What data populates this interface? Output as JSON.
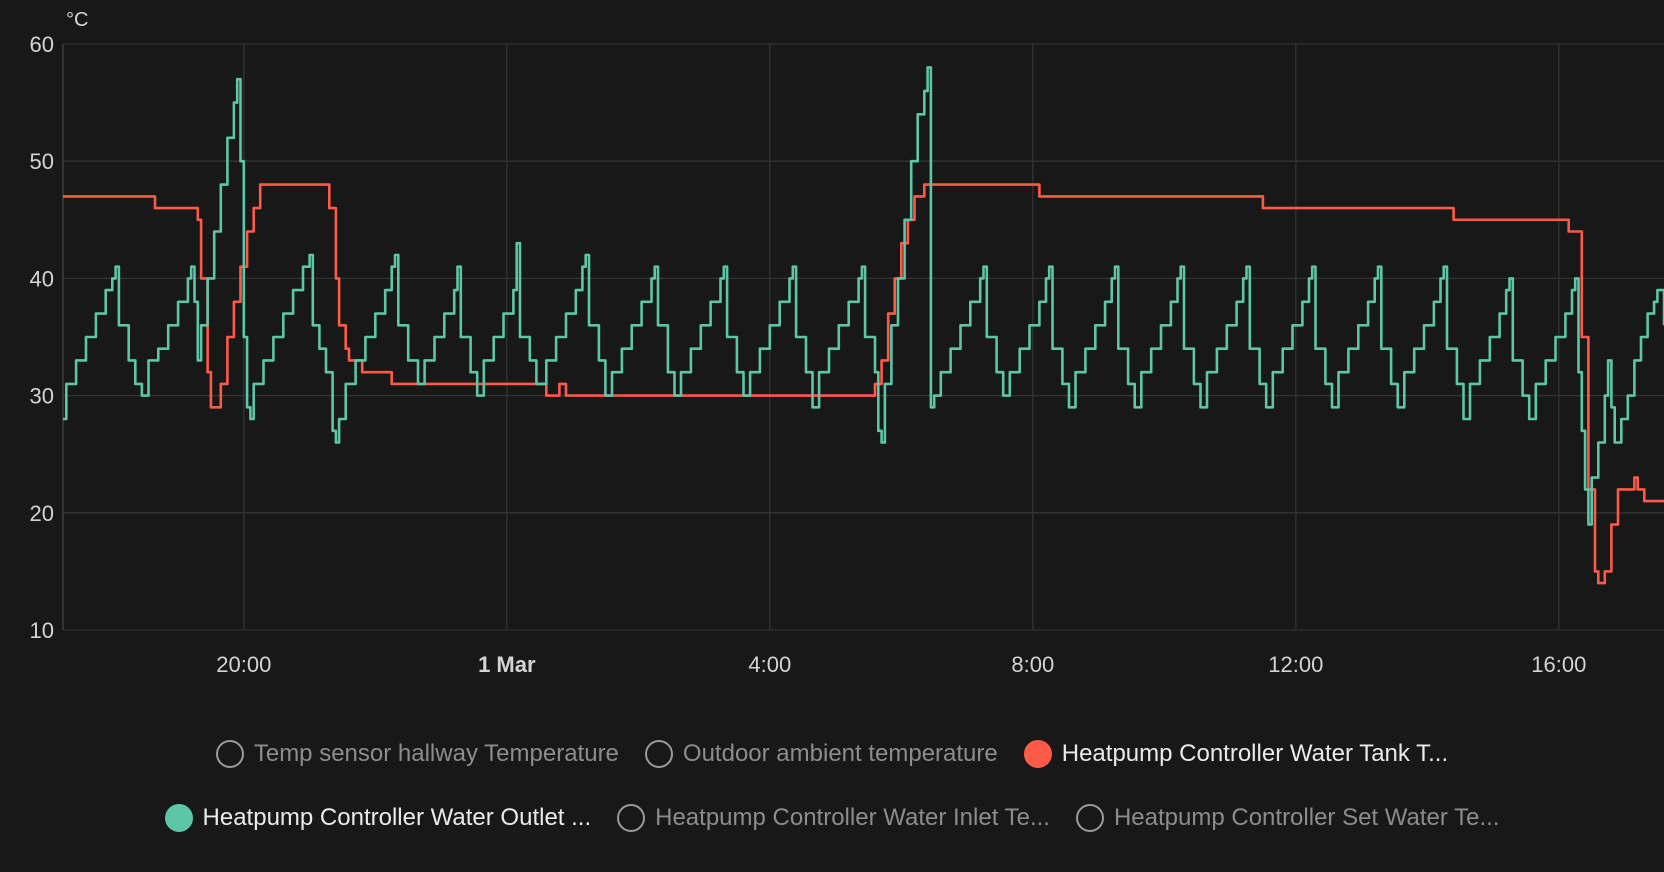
{
  "chart_data": {
    "type": "line",
    "title": "",
    "unit_label": "°C",
    "ylim": [
      10,
      60
    ],
    "y_ticks": [
      10,
      20,
      30,
      40,
      50,
      60
    ],
    "x_range_hours": [
      17.25,
      41.6
    ],
    "x_ticks": [
      {
        "hour": 20,
        "label": "20:00",
        "bold": false
      },
      {
        "hour": 24,
        "label": "1 Mar",
        "bold": true
      },
      {
        "hour": 28,
        "label": "4:00",
        "bold": false
      },
      {
        "hour": 32,
        "label": "8:00",
        "bold": false
      },
      {
        "hour": 36,
        "label": "12:00",
        "bold": false
      },
      {
        "hour": 40,
        "label": "16:00",
        "bold": false
      }
    ],
    "grid": true,
    "legend_position": "bottom",
    "series": [
      {
        "name": "Heatpump Controller Water Tank T...",
        "color": "#ff5a47",
        "step": true,
        "points": [
          [
            17.25,
            47
          ],
          [
            18.65,
            46
          ],
          [
            19.3,
            45
          ],
          [
            19.35,
            40
          ],
          [
            19.45,
            32
          ],
          [
            19.5,
            29
          ],
          [
            19.6,
            29
          ],
          [
            19.65,
            31
          ],
          [
            19.75,
            35
          ],
          [
            19.85,
            38
          ],
          [
            19.95,
            41
          ],
          [
            20.05,
            44
          ],
          [
            20.15,
            46
          ],
          [
            20.25,
            48
          ],
          [
            21.25,
            48
          ],
          [
            21.3,
            46
          ],
          [
            21.4,
            40
          ],
          [
            21.45,
            36
          ],
          [
            21.55,
            34
          ],
          [
            21.6,
            33
          ],
          [
            21.75,
            33
          ],
          [
            21.8,
            32
          ],
          [
            22.2,
            32
          ],
          [
            22.25,
            31
          ],
          [
            24.6,
            31
          ],
          [
            24.6,
            30
          ],
          [
            24.8,
            30
          ],
          [
            24.8,
            31
          ],
          [
            24.9,
            31
          ],
          [
            24.9,
            30
          ],
          [
            29.55,
            30
          ],
          [
            29.6,
            31
          ],
          [
            29.7,
            33
          ],
          [
            29.8,
            37
          ],
          [
            29.9,
            40
          ],
          [
            30.0,
            43
          ],
          [
            30.1,
            45
          ],
          [
            30.2,
            47
          ],
          [
            30.35,
            48
          ],
          [
            32.05,
            48
          ],
          [
            32.1,
            47
          ],
          [
            35.45,
            47
          ],
          [
            35.5,
            46
          ],
          [
            38.35,
            46
          ],
          [
            38.4,
            45
          ],
          [
            40.1,
            45
          ],
          [
            40.15,
            44
          ],
          [
            40.25,
            44
          ],
          [
            40.35,
            35
          ],
          [
            40.45,
            22
          ],
          [
            40.55,
            15
          ],
          [
            40.6,
            14
          ],
          [
            40.7,
            15
          ],
          [
            40.8,
            19
          ],
          [
            40.9,
            22
          ],
          [
            41.1,
            22
          ],
          [
            41.15,
            23
          ],
          [
            41.2,
            22
          ],
          [
            41.3,
            21
          ],
          [
            41.6,
            21
          ]
        ]
      },
      {
        "name": "Heatpump Controller Water Outlet ...",
        "color": "#5cc6a6",
        "step": true,
        "points": [
          [
            17.25,
            28
          ],
          [
            17.3,
            31
          ],
          [
            17.45,
            33
          ],
          [
            17.6,
            35
          ],
          [
            17.75,
            37
          ],
          [
            17.9,
            39
          ],
          [
            18.0,
            40
          ],
          [
            18.05,
            41
          ],
          [
            18.1,
            36
          ],
          [
            18.25,
            33
          ],
          [
            18.35,
            31
          ],
          [
            18.45,
            30
          ],
          [
            18.55,
            33
          ],
          [
            18.7,
            34
          ],
          [
            18.85,
            36
          ],
          [
            19.0,
            38
          ],
          [
            19.15,
            40
          ],
          [
            19.2,
            41
          ],
          [
            19.25,
            38
          ],
          [
            19.3,
            33
          ],
          [
            19.35,
            36
          ],
          [
            19.45,
            40
          ],
          [
            19.55,
            44
          ],
          [
            19.65,
            48
          ],
          [
            19.75,
            52
          ],
          [
            19.85,
            55
          ],
          [
            19.9,
            57
          ],
          [
            19.95,
            50
          ],
          [
            20.0,
            35
          ],
          [
            20.05,
            29
          ],
          [
            20.1,
            28
          ],
          [
            20.15,
            31
          ],
          [
            20.3,
            33
          ],
          [
            20.45,
            35
          ],
          [
            20.6,
            37
          ],
          [
            20.75,
            39
          ],
          [
            20.9,
            41
          ],
          [
            21.0,
            42
          ],
          [
            21.05,
            36
          ],
          [
            21.15,
            34
          ],
          [
            21.25,
            32
          ],
          [
            21.35,
            27
          ],
          [
            21.4,
            26
          ],
          [
            21.45,
            28
          ],
          [
            21.55,
            31
          ],
          [
            21.7,
            33
          ],
          [
            21.85,
            35
          ],
          [
            22.0,
            37
          ],
          [
            22.15,
            39
          ],
          [
            22.25,
            41
          ],
          [
            22.3,
            42
          ],
          [
            22.35,
            36
          ],
          [
            22.5,
            33
          ],
          [
            22.65,
            31
          ],
          [
            22.75,
            33
          ],
          [
            22.9,
            35
          ],
          [
            23.05,
            37
          ],
          [
            23.2,
            39
          ],
          [
            23.25,
            41
          ],
          [
            23.3,
            35
          ],
          [
            23.45,
            32
          ],
          [
            23.55,
            30
          ],
          [
            23.65,
            33
          ],
          [
            23.8,
            35
          ],
          [
            23.95,
            37
          ],
          [
            24.1,
            39
          ],
          [
            24.15,
            43
          ],
          [
            24.2,
            35
          ],
          [
            24.35,
            33
          ],
          [
            24.45,
            31
          ],
          [
            24.6,
            33
          ],
          [
            24.75,
            35
          ],
          [
            24.9,
            37
          ],
          [
            25.05,
            39
          ],
          [
            25.15,
            41
          ],
          [
            25.2,
            42
          ],
          [
            25.25,
            36
          ],
          [
            25.4,
            33
          ],
          [
            25.5,
            30
          ],
          [
            25.6,
            32
          ],
          [
            25.75,
            34
          ],
          [
            25.9,
            36
          ],
          [
            26.05,
            38
          ],
          [
            26.2,
            40
          ],
          [
            26.25,
            41
          ],
          [
            26.3,
            36
          ],
          [
            26.45,
            32
          ],
          [
            26.55,
            30
          ],
          [
            26.65,
            32
          ],
          [
            26.8,
            34
          ],
          [
            26.95,
            36
          ],
          [
            27.1,
            38
          ],
          [
            27.25,
            40
          ],
          [
            27.3,
            41
          ],
          [
            27.35,
            35
          ],
          [
            27.5,
            32
          ],
          [
            27.6,
            30
          ],
          [
            27.7,
            32
          ],
          [
            27.85,
            34
          ],
          [
            28.0,
            36
          ],
          [
            28.15,
            38
          ],
          [
            28.3,
            40
          ],
          [
            28.35,
            41
          ],
          [
            28.4,
            35
          ],
          [
            28.55,
            32
          ],
          [
            28.65,
            29
          ],
          [
            28.75,
            32
          ],
          [
            28.9,
            34
          ],
          [
            29.05,
            36
          ],
          [
            29.2,
            38
          ],
          [
            29.35,
            40
          ],
          [
            29.4,
            41
          ],
          [
            29.45,
            35
          ],
          [
            29.6,
            32
          ],
          [
            29.65,
            27
          ],
          [
            29.7,
            26
          ],
          [
            29.75,
            31
          ],
          [
            29.85,
            36
          ],
          [
            29.95,
            40
          ],
          [
            30.05,
            45
          ],
          [
            30.15,
            50
          ],
          [
            30.25,
            54
          ],
          [
            30.35,
            56
          ],
          [
            30.4,
            58
          ],
          [
            30.45,
            29
          ],
          [
            30.5,
            30
          ],
          [
            30.6,
            32
          ],
          [
            30.75,
            34
          ],
          [
            30.9,
            36
          ],
          [
            31.05,
            38
          ],
          [
            31.2,
            40
          ],
          [
            31.25,
            41
          ],
          [
            31.3,
            35
          ],
          [
            31.45,
            32
          ],
          [
            31.55,
            30
          ],
          [
            31.65,
            32
          ],
          [
            31.8,
            34
          ],
          [
            31.95,
            36
          ],
          [
            32.1,
            38
          ],
          [
            32.2,
            40
          ],
          [
            32.25,
            41
          ],
          [
            32.3,
            34
          ],
          [
            32.45,
            31
          ],
          [
            32.55,
            29
          ],
          [
            32.65,
            32
          ],
          [
            32.8,
            34
          ],
          [
            32.95,
            36
          ],
          [
            33.1,
            38
          ],
          [
            33.2,
            40
          ],
          [
            33.25,
            41
          ],
          [
            33.3,
            34
          ],
          [
            33.45,
            31
          ],
          [
            33.55,
            29
          ],
          [
            33.65,
            32
          ],
          [
            33.8,
            34
          ],
          [
            33.95,
            36
          ],
          [
            34.1,
            38
          ],
          [
            34.2,
            40
          ],
          [
            34.25,
            41
          ],
          [
            34.3,
            34
          ],
          [
            34.45,
            31
          ],
          [
            34.55,
            29
          ],
          [
            34.65,
            32
          ],
          [
            34.8,
            34
          ],
          [
            34.95,
            36
          ],
          [
            35.1,
            38
          ],
          [
            35.2,
            40
          ],
          [
            35.25,
            41
          ],
          [
            35.3,
            34
          ],
          [
            35.45,
            31
          ],
          [
            35.55,
            29
          ],
          [
            35.65,
            32
          ],
          [
            35.8,
            34
          ],
          [
            35.95,
            36
          ],
          [
            36.1,
            38
          ],
          [
            36.2,
            40
          ],
          [
            36.25,
            41
          ],
          [
            36.3,
            34
          ],
          [
            36.45,
            31
          ],
          [
            36.55,
            29
          ],
          [
            36.65,
            32
          ],
          [
            36.8,
            34
          ],
          [
            36.95,
            36
          ],
          [
            37.1,
            38
          ],
          [
            37.2,
            40
          ],
          [
            37.25,
            41
          ],
          [
            37.3,
            34
          ],
          [
            37.45,
            31
          ],
          [
            37.55,
            29
          ],
          [
            37.65,
            32
          ],
          [
            37.8,
            34
          ],
          [
            37.95,
            36
          ],
          [
            38.1,
            38
          ],
          [
            38.2,
            40
          ],
          [
            38.25,
            41
          ],
          [
            38.3,
            34
          ],
          [
            38.45,
            31
          ],
          [
            38.55,
            28
          ],
          [
            38.65,
            31
          ],
          [
            38.8,
            33
          ],
          [
            38.95,
            35
          ],
          [
            39.1,
            37
          ],
          [
            39.2,
            39
          ],
          [
            39.25,
            40
          ],
          [
            39.3,
            33
          ],
          [
            39.45,
            30
          ],
          [
            39.55,
            28
          ],
          [
            39.65,
            31
          ],
          [
            39.8,
            33
          ],
          [
            39.95,
            35
          ],
          [
            40.1,
            37
          ],
          [
            40.2,
            39
          ],
          [
            40.25,
            40
          ],
          [
            40.3,
            32
          ],
          [
            40.35,
            27
          ],
          [
            40.4,
            22
          ],
          [
            40.45,
            19
          ],
          [
            40.5,
            23
          ],
          [
            40.6,
            26
          ],
          [
            40.7,
            30
          ],
          [
            40.75,
            33
          ],
          [
            40.8,
            29
          ],
          [
            40.85,
            26
          ],
          [
            40.95,
            28
          ],
          [
            41.05,
            30
          ],
          [
            41.15,
            33
          ],
          [
            41.25,
            35
          ],
          [
            41.35,
            37
          ],
          [
            41.45,
            38
          ],
          [
            41.5,
            39
          ],
          [
            41.6,
            36
          ]
        ]
      }
    ]
  },
  "legend": {
    "row1": [
      {
        "label": "Temp sensor hallway Temperature",
        "active": false,
        "color": ""
      },
      {
        "label": "Outdoor ambient temperature",
        "active": false,
        "color": ""
      },
      {
        "label": "Heatpump Controller Water Tank T...",
        "active": true,
        "color": "#ff5a47"
      }
    ],
    "row2": [
      {
        "label": "Heatpump Controller Water Outlet ...",
        "active": true,
        "color": "#5cc6a6"
      },
      {
        "label": "Heatpump Controller Water Inlet Te...",
        "active": false,
        "color": ""
      },
      {
        "label": "Heatpump Controller Set Water Te...",
        "active": false,
        "color": ""
      }
    ]
  }
}
